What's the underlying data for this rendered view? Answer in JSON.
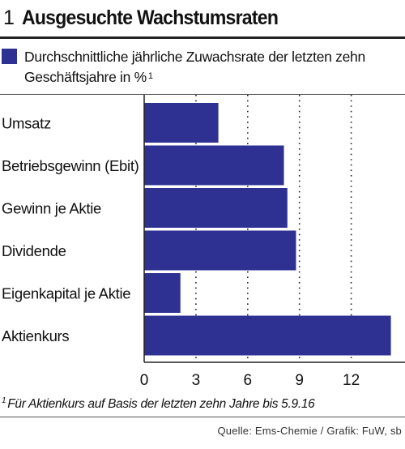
{
  "header": {
    "number": "1",
    "title": "Ausgesuchte Wachstumsraten"
  },
  "legend": {
    "label": "Durchschnittliche jährliche Zuwachsrate der letzten zehn Geschäftsjahre in %",
    "footnote_mark": "1",
    "color": "#2e3192"
  },
  "footnote": {
    "mark": "1",
    "text": "Für Aktienkurs auf Basis der letzten zehn Jahre bis 5.9.16"
  },
  "source": "Quelle: Ems-Chemie / Grafik: FuW, sb",
  "chart_data": {
    "type": "bar",
    "orientation": "horizontal",
    "categories": [
      "Umsatz",
      "Betriebsgewinn (Ebit)",
      "Gewinn je Aktie",
      "Dividende",
      "Eigenkapital je Aktie",
      "Aktienkurs"
    ],
    "series": [
      {
        "values": [
          4.3,
          8.1,
          8.3,
          8.8,
          2.1,
          14.3
        ]
      }
    ],
    "xlim": [
      0,
      14.5
    ],
    "xticks": [
      0,
      3,
      6,
      9,
      12
    ],
    "grid": "vertical dotted",
    "bar_color": "#2e3192"
  }
}
